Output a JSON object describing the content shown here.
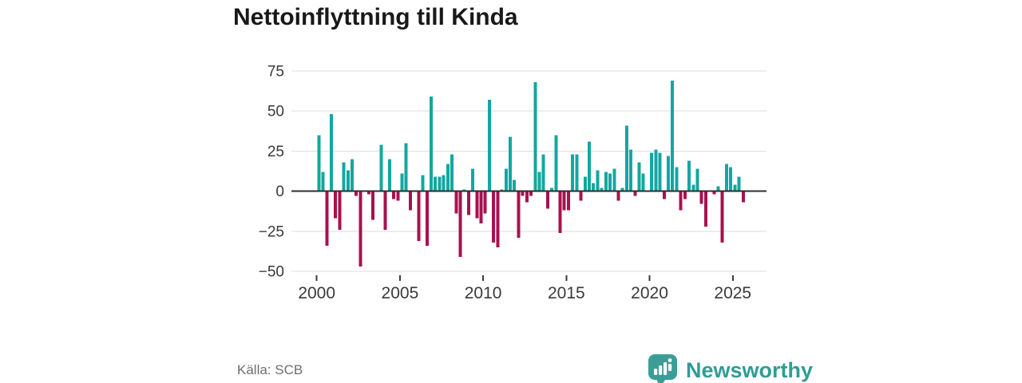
{
  "title": "Nettoinflyttning till Kinda",
  "source": "Källa: SCB",
  "brand": {
    "name": "Newsworthy",
    "color": "#2f9d96"
  },
  "chart_data": {
    "type": "bar",
    "title": "Nettoinflyttning till Kinda",
    "frequency": "quarterly",
    "start_year": 2000,
    "start_quarter": 1,
    "end_label": "2025-Q3",
    "x_ticks": [
      "2000",
      "2005",
      "2010",
      "2015",
      "2020",
      "2025"
    ],
    "y_ticks": [
      75,
      50,
      25,
      0,
      -25,
      -50
    ],
    "ylim": [
      -50,
      75
    ],
    "grid": true,
    "legend": "none",
    "colors": {
      "positive": "#13a7a1",
      "negative": "#a8114f"
    },
    "series": [
      {
        "name": "Nettoinflyttning",
        "values": [
          35,
          12,
          -34,
          48,
          -17,
          -24,
          18,
          13,
          20,
          -3,
          -47,
          0,
          -2,
          -18,
          0,
          29,
          -24,
          20,
          -5,
          -6,
          11,
          30,
          -12,
          0,
          -31,
          10,
          -34,
          59,
          9,
          9,
          10,
          17,
          23,
          -14,
          -41,
          1,
          -15,
          14,
          -17,
          -20,
          -14,
          57,
          -32,
          -35,
          1,
          14,
          34,
          7,
          -29,
          -3,
          -7,
          -3,
          68,
          12,
          23,
          -11,
          2,
          35,
          -26,
          -12,
          -12,
          23,
          23,
          -6,
          9,
          31,
          5,
          13,
          2,
          12,
          11,
          14,
          -6,
          2,
          41,
          26,
          -3,
          18,
          11,
          0,
          24,
          26,
          24,
          -5,
          22,
          69,
          15,
          -12,
          -5,
          19,
          4,
          14,
          -8,
          -22,
          0,
          -2,
          3,
          -32,
          17,
          15,
          4,
          9,
          -7
        ]
      }
    ]
  }
}
